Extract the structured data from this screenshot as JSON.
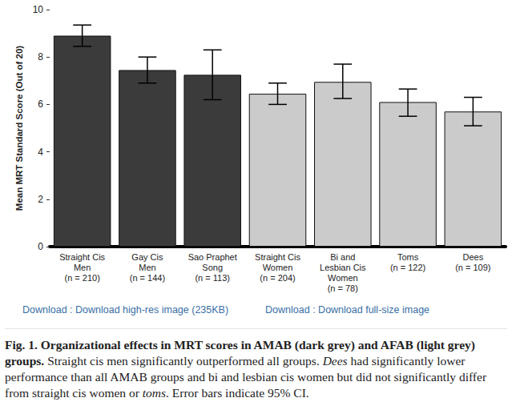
{
  "chart_data": {
    "type": "bar",
    "y_label": "Mean MRT Standard Score (Out of 20)",
    "categories": [
      "Straight Cis\nMen\n(n = 210)",
      "Gay Cis\nMen\n(n = 144)",
      "Sao Praphet\nSong\n(n = 113)",
      "Straight Cis\nWomen\n(n = 204)",
      "Bi and\nLesbian Cis\nWomen\n(n = 78)",
      "Toms\n(n = 122)",
      "Dees\n(n = 109)"
    ],
    "values": [
      8.9,
      7.45,
      7.25,
      6.45,
      6.95,
      6.1,
      5.7
    ],
    "error_low": [
      8.45,
      6.9,
      6.2,
      6.0,
      6.25,
      5.5,
      5.1
    ],
    "error_high": [
      9.35,
      8.0,
      8.3,
      6.9,
      7.7,
      6.65,
      6.3
    ],
    "colors": [
      "#3b3b3b",
      "#3b3b3b",
      "#3b3b3b",
      "#cbcbcb",
      "#cbcbcb",
      "#cbcbcb",
      "#cbcbcb"
    ],
    "ylim": [
      0,
      10
    ],
    "yticks": [
      0,
      2,
      4,
      6,
      8,
      10
    ],
    "grid": false
  },
  "links": [
    "Download : Download high-res image (235KB)",
    "Download : Download full-size image"
  ],
  "caption": [
    {
      "text": "Fig. 1. Organizational effects in MRT scores in AMAB (dark grey) and AFAB (light grey) groups.",
      "style": "bold"
    },
    {
      "text": " Straight cis men significantly outperformed all groups. ",
      "style": "normal"
    },
    {
      "text": "Dees",
      "style": "italic"
    },
    {
      "text": " had significantly lower performance than all AMAB groups and bi and lesbian cis women but did not significantly differ from straight cis women or ",
      "style": "normal"
    },
    {
      "text": "toms",
      "style": "italic"
    },
    {
      "text": ". Error bars indicate 95% CI.",
      "style": "normal"
    }
  ]
}
